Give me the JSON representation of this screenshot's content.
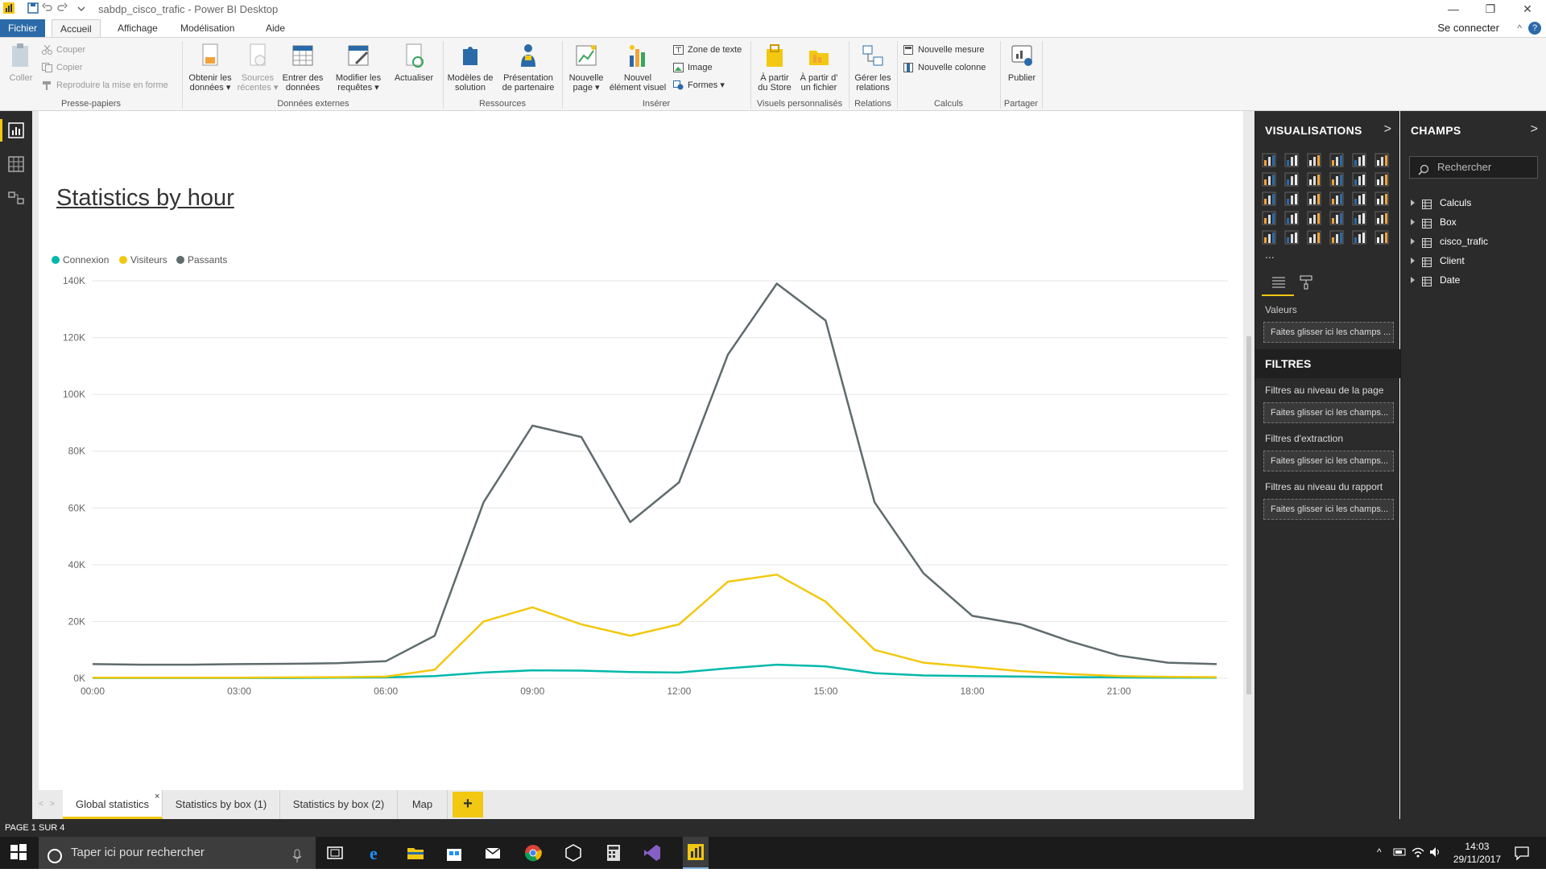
{
  "window": {
    "title": "sabdp_cisco_trafic - Power BI Desktop",
    "minimize": "—",
    "restore": "❐",
    "close": "✕"
  },
  "menu_tabs": [
    "Fichier",
    "Accueil",
    "Affichage",
    "Modélisation",
    "Aide"
  ],
  "connect_label": "Se connecter",
  "help_label": "?",
  "ribbon": {
    "coller": "Coller",
    "couper": "Couper",
    "copier": "Copier",
    "reproduire": "Reproduire la mise en forme",
    "presse_papiers": "Presse-papiers",
    "obtenir": [
      "Obtenir les",
      "données ▾"
    ],
    "sources": [
      "Sources",
      "récentes ▾"
    ],
    "entrer": [
      "Entrer des",
      "données"
    ],
    "modifier": [
      "Modifier les",
      "requêtes ▾"
    ],
    "actualiser": "Actualiser",
    "donnees_externes": "Données externes",
    "modeles": [
      "Modèles de",
      "solution"
    ],
    "presentation": [
      "Présentation",
      "de partenaire"
    ],
    "ressources": "Ressources",
    "nouvelle_page": [
      "Nouvelle",
      "page ▾"
    ],
    "nouvel_element": [
      "Nouvel",
      "élément visuel"
    ],
    "zone_texte": "Zone de texte",
    "image": "Image",
    "formes": "Formes ▾",
    "inserer": "Insérer",
    "store": [
      "À partir",
      "du Store"
    ],
    "fichier": [
      "À partir d'",
      "un fichier"
    ],
    "visuels_perso": "Visuels personnalisés",
    "gerer": [
      "Gérer les",
      "relations"
    ],
    "relations": "Relations",
    "nouvelle_mesure": "Nouvelle mesure",
    "nouvelle_colonne": "Nouvelle colonne",
    "calculs": "Calculs",
    "publier": "Publier",
    "partager": "Partager"
  },
  "chart_data": {
    "type": "line",
    "title": "Statistics by hour",
    "x": [
      "00:00",
      "01:00",
      "02:00",
      "03:00",
      "04:00",
      "05:00",
      "06:00",
      "07:00",
      "08:00",
      "09:00",
      "10:00",
      "11:00",
      "12:00",
      "13:00",
      "14:00",
      "15:00",
      "16:00",
      "17:00",
      "18:00",
      "19:00",
      "20:00",
      "21:00",
      "22:00",
      "23:00"
    ],
    "x_tick_labels": [
      "00:00",
      "03:00",
      "06:00",
      "09:00",
      "12:00",
      "15:00",
      "18:00",
      "21:00"
    ],
    "y_tick_labels": [
      "0K",
      "20K",
      "40K",
      "60K",
      "80K",
      "100K",
      "120K",
      "140K"
    ],
    "ylim": [
      0,
      140000
    ],
    "grid": true,
    "legend_position": "top-left",
    "series": [
      {
        "name": "Connexion",
        "color": "#01b8aa",
        "values": [
          100,
          100,
          100,
          100,
          100,
          200,
          300,
          800,
          2000,
          2800,
          2700,
          2200,
          2000,
          3500,
          4800,
          4200,
          1800,
          1000,
          800,
          600,
          400,
          300,
          200,
          200
        ]
      },
      {
        "name": "Visiteurs",
        "color": "#f2c80f",
        "values": [
          200,
          200,
          200,
          200,
          300,
          400,
          600,
          3000,
          20000,
          25000,
          19000,
          15000,
          19000,
          34000,
          36500,
          27000,
          10000,
          5500,
          4000,
          2500,
          1500,
          800,
          500,
          400
        ]
      },
      {
        "name": "Passants",
        "color": "#5f6b6d",
        "values": [
          5000,
          4800,
          4800,
          5000,
          5100,
          5300,
          6000,
          15000,
          62000,
          89000,
          85000,
          55000,
          69000,
          114000,
          139000,
          126000,
          62000,
          37000,
          22000,
          19000,
          13000,
          8000,
          5500,
          5000
        ]
      }
    ]
  },
  "page_tabs": [
    "Global statistics",
    "Statistics by box (1)",
    "Statistics by box (2)",
    "Map"
  ],
  "page_tab_close": "×",
  "page_tab_add": "+",
  "status": "PAGE 1 SUR 4",
  "viz_pane": {
    "title": "VISUALISATIONS",
    "chevron": ">",
    "more": "...",
    "values_label": "Valeurs",
    "values_well": "Faites glisser ici les champs ...",
    "filters_title": "FILTRES",
    "filter_page": "Filtres au niveau de la page",
    "filter_page_well": "Faites glisser ici les champs...",
    "filter_drill": "Filtres d'extraction",
    "filter_drill_well": "Faites glisser ici les champs...",
    "filter_report": "Filtres au niveau du rapport",
    "filter_report_well": "Faites glisser ici les champs..."
  },
  "fields_pane": {
    "title": "CHAMPS",
    "chevron": ">",
    "search_placeholder": "Rechercher",
    "tables": [
      "Calculs",
      "Box",
      "cisco_trafic",
      "Client",
      "Date"
    ]
  },
  "taskbar": {
    "search_placeholder": "Taper ici pour rechercher",
    "time": "14:03",
    "date": "29/11/2017"
  },
  "colors": {
    "accent": "#f2c811",
    "pane_bg": "#2b2b2b",
    "file_tab": "#2b6aa8"
  }
}
